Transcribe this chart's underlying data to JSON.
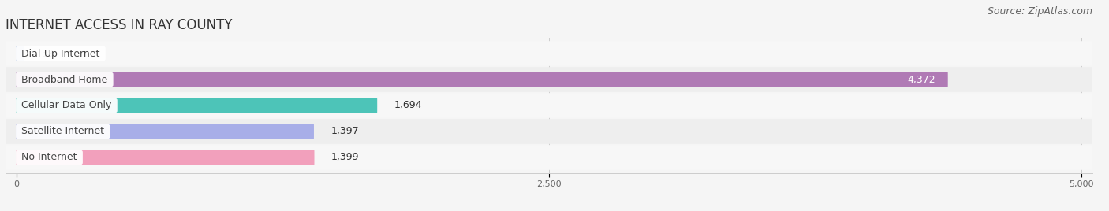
{
  "title": "INTERNET ACCESS IN RAY COUNTY",
  "source": "Source: ZipAtlas.com",
  "categories": [
    "Dial-Up Internet",
    "Broadband Home",
    "Cellular Data Only",
    "Satellite Internet",
    "No Internet"
  ],
  "values": [
    38,
    4372,
    1694,
    1397,
    1399
  ],
  "bar_colors": [
    "#aec6e8",
    "#b07ab5",
    "#4dc4b8",
    "#a8aee8",
    "#f2a0bc"
  ],
  "row_bg_light": "#f7f7f7",
  "row_bg_dark": "#eeeeee",
  "xlim": [
    0,
    5000
  ],
  "xticks": [
    0,
    2500,
    5000
  ],
  "bar_height": 0.55,
  "title_fontsize": 12,
  "source_fontsize": 9,
  "label_fontsize": 9,
  "value_fontsize": 9,
  "fig_bg": "#f5f5f5"
}
